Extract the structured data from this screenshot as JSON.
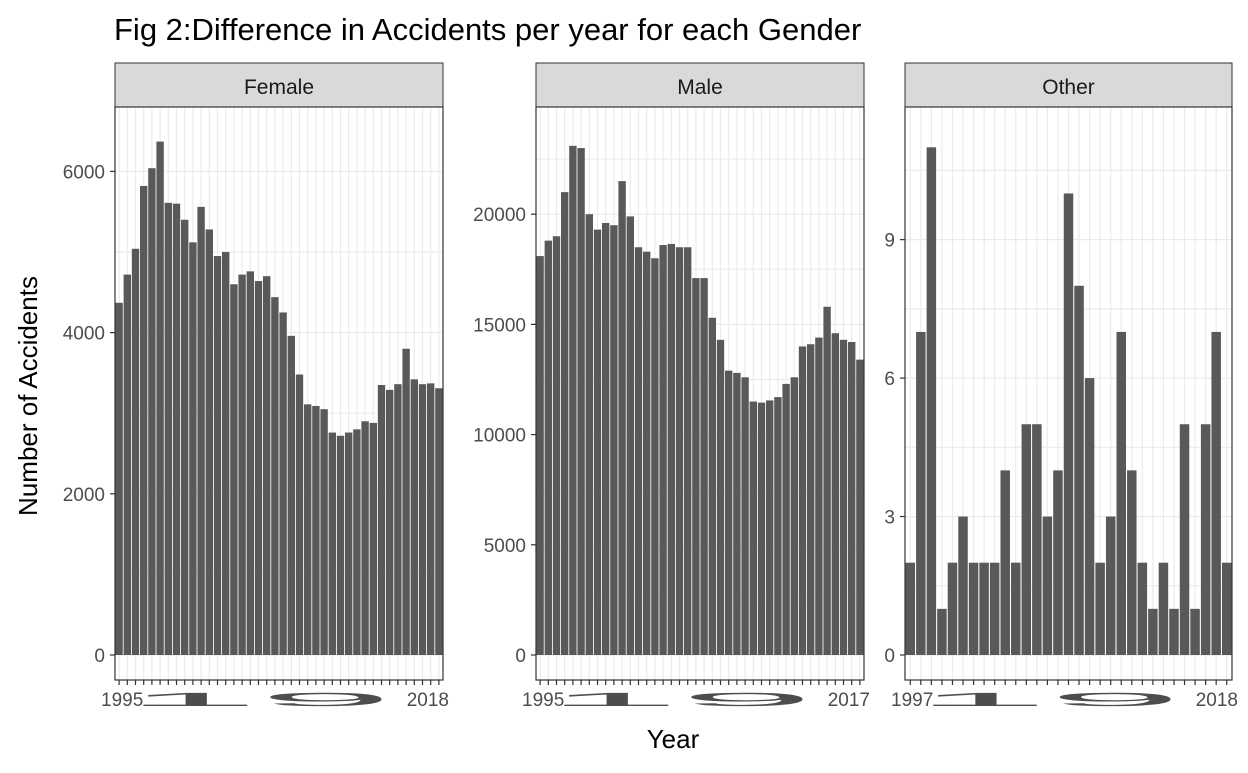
{
  "chart_data": {
    "type": "bar",
    "title": "Fig 2:Difference in Accidents per year for each Gender",
    "xlabel": "Year",
    "ylabel": "Number of Accidents",
    "grid": true,
    "colors": {
      "bar": "#595959",
      "strip": "#d9d9d9",
      "grid": "#ebebeb",
      "axis_text": "#4d4d4d",
      "text": "#000000"
    },
    "panels": [
      {
        "name": "Female",
        "ylim": [
          0,
          6700
        ],
        "yticks": [
          0,
          2000,
          4000,
          6000
        ],
        "x_tick_text": "19",
        "x_tick_text_end": "2018",
        "x_tick_text_end_full": "2018",
        "x_tick_garble": "1995",
        "values": [
          4370,
          4720,
          5040,
          5820,
          6040,
          6370,
          5610,
          5600,
          5400,
          5120,
          5560,
          5280,
          4950,
          5000,
          4600,
          4720,
          4760,
          4640,
          4700,
          4440,
          4250,
          3960,
          3480,
          3110,
          3090,
          3050,
          2760,
          2720,
          2760,
          2800,
          2900,
          2880,
          3350,
          3290,
          3360,
          3800,
          3420,
          3360,
          3370,
          3310
        ]
      },
      {
        "name": "Male",
        "ylim": [
          0,
          24500
        ],
        "yticks": [
          0,
          5000,
          10000,
          15000,
          20000
        ],
        "x_tick_text": "19",
        "x_tick_text_end": "2017",
        "x_tick_text_end_full": "2017",
        "x_tick_garble": "1995",
        "values": [
          18100,
          18800,
          19000,
          21000,
          23100,
          23000,
          20000,
          19300,
          19600,
          19500,
          21500,
          19900,
          18500,
          18300,
          18000,
          18600,
          18650,
          18500,
          18500,
          17100,
          17100,
          15300,
          14300,
          12900,
          12800,
          12600,
          11500,
          11450,
          11550,
          11700,
          12300,
          12600,
          14000,
          14100,
          14400,
          15800,
          14600,
          14300,
          14200,
          13400
        ]
      },
      {
        "name": "Other",
        "ylim": [
          0,
          11.7
        ],
        "yticks": [
          0,
          3,
          6,
          9
        ],
        "x_tick_text": "19",
        "x_tick_text_end": "2018",
        "x_tick_text_end_full": "2018",
        "x_tick_garble": "1997",
        "values": [
          2,
          7,
          11,
          1,
          2,
          3,
          2,
          2,
          2,
          4,
          2,
          5,
          5,
          3,
          4,
          10,
          8,
          6,
          2,
          3,
          7,
          4,
          2,
          1,
          2,
          1,
          5,
          1,
          5,
          7,
          2
        ]
      }
    ]
  }
}
